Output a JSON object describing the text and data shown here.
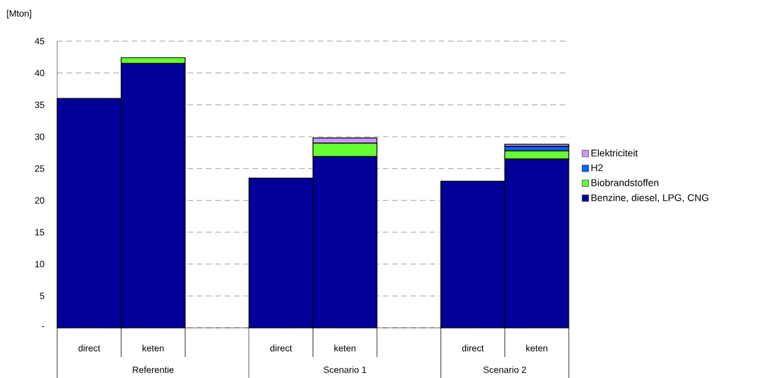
{
  "chart_data": {
    "type": "bar",
    "stacked": true,
    "ylabel": "[Mton]",
    "categories": [
      "direct",
      "keten",
      null,
      "direct",
      "keten",
      null,
      "direct",
      "keten"
    ],
    "series": [
      {
        "name": "Benzine, diesel, LPG, CNG",
        "color": "#000099",
        "values": [
          36.0,
          41.5,
          null,
          23.5,
          26.9,
          null,
          23.0,
          26.5
        ]
      },
      {
        "name": "Biobrandstoffen",
        "color": "#66ff33",
        "values": [
          null,
          0.9,
          null,
          null,
          2.1,
          null,
          null,
          1.3
        ]
      },
      {
        "name": "H2",
        "color": "#0066ff",
        "values": [
          null,
          null,
          null,
          null,
          null,
          null,
          null,
          0.7
        ]
      },
      {
        "name": "Elektriciteit",
        "color": "#cc99ff",
        "values": [
          null,
          null,
          null,
          null,
          0.8,
          null,
          null,
          0.3
        ]
      }
    ],
    "ylim": [
      0,
      45
    ],
    "yticks": [
      {
        "value": 0,
        "label": "-"
      },
      5,
      10,
      15,
      20,
      25,
      30,
      35,
      40,
      45
    ],
    "grid": "y",
    "legend": "right",
    "annotations": [
      "Referentie",
      "Scenario 1",
      "Scenario 2"
    ]
  }
}
